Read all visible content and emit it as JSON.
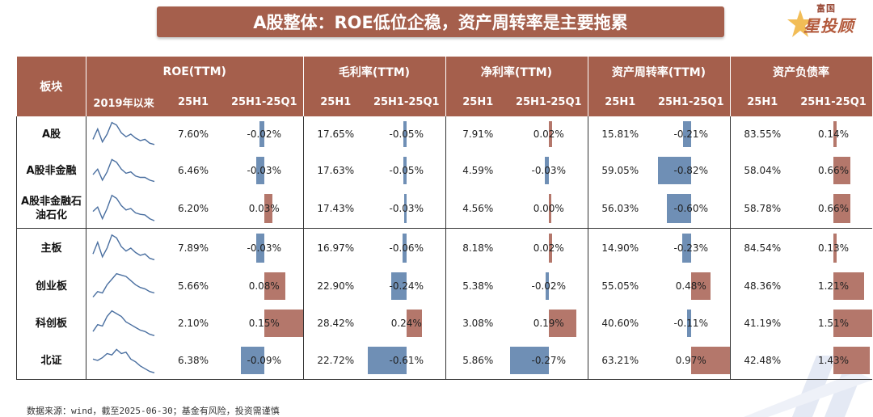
{
  "title": "A股整体：ROE低位企稳，资产周转率是主要拖累",
  "logo": {
    "small": "富国",
    "big": "星投顾"
  },
  "table": {
    "sector_header": "板块",
    "groups": [
      "ROE(TTM)",
      "毛利率(TTM)",
      "净利率(TTM)",
      "资产周转率(TTM)",
      "资产负债率"
    ],
    "sub_headers": {
      "trend": "2019年以来",
      "level": "25H1",
      "change": "25H1-25Q1"
    },
    "colors": {
      "positive": "#b4776b",
      "negative": "#6f8fb5",
      "header": "#a55f4c"
    },
    "rows": [
      {
        "name": "A股",
        "metrics": [
          {
            "level": "7.60%",
            "change": "-0.02%",
            "chg": -0.02
          },
          {
            "level": "17.65%",
            "change": "-0.05%",
            "chg": -0.05
          },
          {
            "level": "7.91%",
            "change": "0.02%",
            "chg": 0.02
          },
          {
            "level": "15.81%",
            "change": "-0.21%",
            "chg": -0.21
          },
          {
            "level": "83.55%",
            "change": "0.14%",
            "chg": 0.14
          }
        ]
      },
      {
        "name": "A股非金融",
        "metrics": [
          {
            "level": "6.46%",
            "change": "-0.03%",
            "chg": -0.03
          },
          {
            "level": "17.63%",
            "change": "-0.05%",
            "chg": -0.05
          },
          {
            "level": "4.59%",
            "change": "-0.03%",
            "chg": -0.03
          },
          {
            "level": "59.05%",
            "change": "-0.82%",
            "chg": -0.82
          },
          {
            "level": "58.04%",
            "change": "0.66%",
            "chg": 0.66
          }
        ]
      },
      {
        "name": "A股非金融石油石化",
        "metrics": [
          {
            "level": "6.20%",
            "change": "0.03%",
            "chg": 0.03
          },
          {
            "level": "17.43%",
            "change": "-0.03%",
            "chg": -0.03
          },
          {
            "level": "4.56%",
            "change": "0.00%",
            "chg": 0.0
          },
          {
            "level": "56.03%",
            "change": "-0.60%",
            "chg": -0.6
          },
          {
            "level": "58.78%",
            "change": "0.66%",
            "chg": 0.66
          }
        ]
      },
      {
        "name": "主板",
        "metrics": [
          {
            "level": "7.89%",
            "change": "-0.03%",
            "chg": -0.03
          },
          {
            "level": "16.97%",
            "change": "-0.06%",
            "chg": -0.06
          },
          {
            "level": "8.18%",
            "change": "0.02%",
            "chg": 0.02
          },
          {
            "level": "14.90%",
            "change": "-0.23%",
            "chg": -0.23
          },
          {
            "level": "84.54%",
            "change": "0.13%",
            "chg": 0.13
          }
        ]
      },
      {
        "name": "创业板",
        "metrics": [
          {
            "level": "5.66%",
            "change": "0.08%",
            "chg": 0.08
          },
          {
            "level": "22.90%",
            "change": "-0.24%",
            "chg": -0.24
          },
          {
            "level": "5.38%",
            "change": "-0.02%",
            "chg": -0.02
          },
          {
            "level": "55.05%",
            "change": "0.48%",
            "chg": 0.48
          },
          {
            "level": "48.36%",
            "change": "1.21%",
            "chg": 1.21
          }
        ]
      },
      {
        "name": "科创板",
        "metrics": [
          {
            "level": "2.10%",
            "change": "0.15%",
            "chg": 0.15
          },
          {
            "level": "28.42%",
            "change": "0.24%",
            "chg": 0.24
          },
          {
            "level": "3.08%",
            "change": "0.19%",
            "chg": 0.19
          },
          {
            "level": "40.60%",
            "change": "-0.11%",
            "chg": -0.11
          },
          {
            "level": "41.19%",
            "change": "1.51%",
            "chg": 1.51
          }
        ]
      },
      {
        "name": "北证",
        "metrics": [
          {
            "level": "6.38%",
            "change": "-0.09%",
            "chg": -0.09
          },
          {
            "level": "22.72%",
            "change": "-0.61%",
            "chg": -0.61
          },
          {
            "level": "5.86%",
            "change": "-0.27%",
            "chg": -0.27
          },
          {
            "level": "63.21%",
            "change": "0.97%",
            "chg": 0.97
          },
          {
            "level": "42.48%",
            "change": "1.43%",
            "chg": 1.43
          }
        ]
      }
    ],
    "sparklines": [
      [
        0.3,
        0.7,
        0.2,
        0.5,
        0.95,
        0.85,
        0.55,
        0.4,
        0.5,
        0.35,
        0.25,
        0.3,
        0.15,
        0.1
      ],
      [
        0.35,
        0.55,
        0.15,
        0.45,
        0.9,
        0.8,
        0.55,
        0.4,
        0.45,
        0.3,
        0.25,
        0.25,
        0.15,
        0.1
      ],
      [
        0.4,
        0.55,
        0.15,
        0.5,
        0.95,
        0.85,
        0.6,
        0.45,
        0.5,
        0.35,
        0.3,
        0.28,
        0.15,
        0.08
      ],
      [
        0.3,
        0.7,
        0.2,
        0.5,
        0.95,
        0.85,
        0.55,
        0.4,
        0.5,
        0.35,
        0.25,
        0.3,
        0.15,
        0.1
      ],
      [
        0.1,
        0.3,
        0.25,
        0.55,
        0.75,
        0.95,
        0.9,
        0.85,
        0.7,
        0.55,
        0.45,
        0.4,
        0.3,
        0.25
      ],
      [
        0.2,
        0.45,
        0.4,
        0.75,
        0.95,
        0.85,
        0.75,
        0.55,
        0.45,
        0.35,
        0.25,
        0.2,
        0.1,
        0.05
      ],
      [
        0.55,
        0.5,
        0.6,
        0.75,
        0.7,
        0.9,
        0.75,
        0.8,
        0.55,
        0.45,
        0.3,
        0.2,
        0.1,
        0.05
      ]
    ]
  },
  "footer": "数据来源：wind，截至2025-06-30；基金有风险，投资需谨慎"
}
